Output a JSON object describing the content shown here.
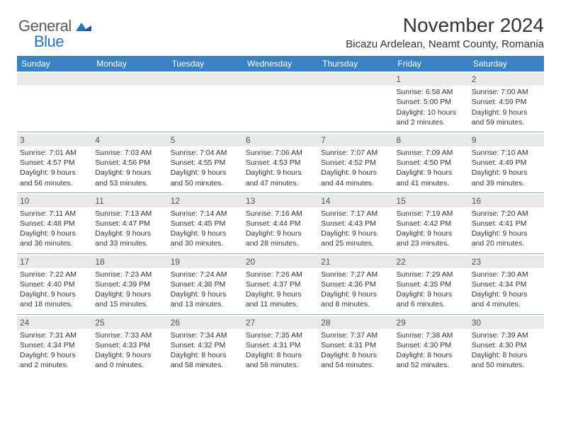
{
  "logo": {
    "text1": "General",
    "text2": "Blue",
    "color1": "#5a5a5a",
    "color2": "#2b73b8"
  },
  "header": {
    "month": "November 2024",
    "location": "Bicazu Ardelean, Neamt County, Romania",
    "month_fontsize": 28,
    "location_fontsize": 15,
    "text_color": "#333333"
  },
  "style": {
    "header_bg": "#3b82c4",
    "header_text": "#ffffff",
    "grid_line": "#9aa8b5",
    "daynum_bg": "#e9e9e9",
    "cell_fontsize": 10.5,
    "daynum_fontsize": 12,
    "dayheader_fontsize": 12
  },
  "day_names": [
    "Sunday",
    "Monday",
    "Tuesday",
    "Wednesday",
    "Thursday",
    "Friday",
    "Saturday"
  ],
  "weeks": [
    [
      null,
      null,
      null,
      null,
      null,
      {
        "n": "1",
        "sr": "Sunrise: 6:58 AM",
        "ss": "Sunset: 5:00 PM",
        "dl": "Daylight: 10 hours and 2 minutes."
      },
      {
        "n": "2",
        "sr": "Sunrise: 7:00 AM",
        "ss": "Sunset: 4:59 PM",
        "dl": "Daylight: 9 hours and 59 minutes."
      }
    ],
    [
      {
        "n": "3",
        "sr": "Sunrise: 7:01 AM",
        "ss": "Sunset: 4:57 PM",
        "dl": "Daylight: 9 hours and 56 minutes."
      },
      {
        "n": "4",
        "sr": "Sunrise: 7:03 AM",
        "ss": "Sunset: 4:56 PM",
        "dl": "Daylight: 9 hours and 53 minutes."
      },
      {
        "n": "5",
        "sr": "Sunrise: 7:04 AM",
        "ss": "Sunset: 4:55 PM",
        "dl": "Daylight: 9 hours and 50 minutes."
      },
      {
        "n": "6",
        "sr": "Sunrise: 7:06 AM",
        "ss": "Sunset: 4:53 PM",
        "dl": "Daylight: 9 hours and 47 minutes."
      },
      {
        "n": "7",
        "sr": "Sunrise: 7:07 AM",
        "ss": "Sunset: 4:52 PM",
        "dl": "Daylight: 9 hours and 44 minutes."
      },
      {
        "n": "8",
        "sr": "Sunrise: 7:09 AM",
        "ss": "Sunset: 4:50 PM",
        "dl": "Daylight: 9 hours and 41 minutes."
      },
      {
        "n": "9",
        "sr": "Sunrise: 7:10 AM",
        "ss": "Sunset: 4:49 PM",
        "dl": "Daylight: 9 hours and 39 minutes."
      }
    ],
    [
      {
        "n": "10",
        "sr": "Sunrise: 7:11 AM",
        "ss": "Sunset: 4:48 PM",
        "dl": "Daylight: 9 hours and 36 minutes."
      },
      {
        "n": "11",
        "sr": "Sunrise: 7:13 AM",
        "ss": "Sunset: 4:47 PM",
        "dl": "Daylight: 9 hours and 33 minutes."
      },
      {
        "n": "12",
        "sr": "Sunrise: 7:14 AM",
        "ss": "Sunset: 4:45 PM",
        "dl": "Daylight: 9 hours and 30 minutes."
      },
      {
        "n": "13",
        "sr": "Sunrise: 7:16 AM",
        "ss": "Sunset: 4:44 PM",
        "dl": "Daylight: 9 hours and 28 minutes."
      },
      {
        "n": "14",
        "sr": "Sunrise: 7:17 AM",
        "ss": "Sunset: 4:43 PM",
        "dl": "Daylight: 9 hours and 25 minutes."
      },
      {
        "n": "15",
        "sr": "Sunrise: 7:19 AM",
        "ss": "Sunset: 4:42 PM",
        "dl": "Daylight: 9 hours and 23 minutes."
      },
      {
        "n": "16",
        "sr": "Sunrise: 7:20 AM",
        "ss": "Sunset: 4:41 PM",
        "dl": "Daylight: 9 hours and 20 minutes."
      }
    ],
    [
      {
        "n": "17",
        "sr": "Sunrise: 7:22 AM",
        "ss": "Sunset: 4:40 PM",
        "dl": "Daylight: 9 hours and 18 minutes."
      },
      {
        "n": "18",
        "sr": "Sunrise: 7:23 AM",
        "ss": "Sunset: 4:39 PM",
        "dl": "Daylight: 9 hours and 15 minutes."
      },
      {
        "n": "19",
        "sr": "Sunrise: 7:24 AM",
        "ss": "Sunset: 4:38 PM",
        "dl": "Daylight: 9 hours and 13 minutes."
      },
      {
        "n": "20",
        "sr": "Sunrise: 7:26 AM",
        "ss": "Sunset: 4:37 PM",
        "dl": "Daylight: 9 hours and 11 minutes."
      },
      {
        "n": "21",
        "sr": "Sunrise: 7:27 AM",
        "ss": "Sunset: 4:36 PM",
        "dl": "Daylight: 9 hours and 8 minutes."
      },
      {
        "n": "22",
        "sr": "Sunrise: 7:29 AM",
        "ss": "Sunset: 4:35 PM",
        "dl": "Daylight: 9 hours and 6 minutes."
      },
      {
        "n": "23",
        "sr": "Sunrise: 7:30 AM",
        "ss": "Sunset: 4:34 PM",
        "dl": "Daylight: 9 hours and 4 minutes."
      }
    ],
    [
      {
        "n": "24",
        "sr": "Sunrise: 7:31 AM",
        "ss": "Sunset: 4:34 PM",
        "dl": "Daylight: 9 hours and 2 minutes."
      },
      {
        "n": "25",
        "sr": "Sunrise: 7:33 AM",
        "ss": "Sunset: 4:33 PM",
        "dl": "Daylight: 9 hours and 0 minutes."
      },
      {
        "n": "26",
        "sr": "Sunrise: 7:34 AM",
        "ss": "Sunset: 4:32 PM",
        "dl": "Daylight: 8 hours and 58 minutes."
      },
      {
        "n": "27",
        "sr": "Sunrise: 7:35 AM",
        "ss": "Sunset: 4:31 PM",
        "dl": "Daylight: 8 hours and 56 minutes."
      },
      {
        "n": "28",
        "sr": "Sunrise: 7:37 AM",
        "ss": "Sunset: 4:31 PM",
        "dl": "Daylight: 8 hours and 54 minutes."
      },
      {
        "n": "29",
        "sr": "Sunrise: 7:38 AM",
        "ss": "Sunset: 4:30 PM",
        "dl": "Daylight: 8 hours and 52 minutes."
      },
      {
        "n": "30",
        "sr": "Sunrise: 7:39 AM",
        "ss": "Sunset: 4:30 PM",
        "dl": "Daylight: 8 hours and 50 minutes."
      }
    ]
  ]
}
